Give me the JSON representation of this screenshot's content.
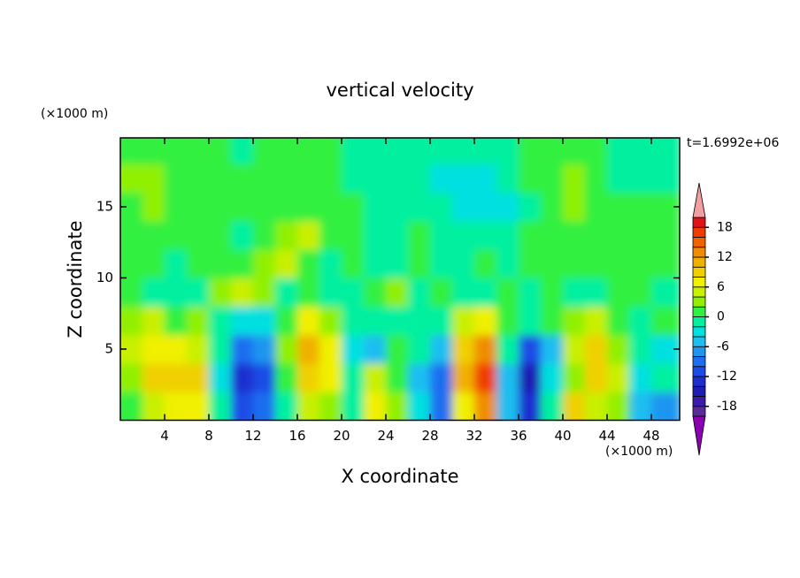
{
  "chart_data": {
    "type": "contour",
    "title": "vertical velocity",
    "subtitle": "t=1.6992e+06",
    "x_label": "X coordinate",
    "y_label": "Z coordinate",
    "x_unit": "(×1000 m)",
    "y_unit": "(×1000 m)",
    "xlim": [
      0,
      50.56
    ],
    "ylim": [
      0,
      19.84
    ],
    "xticks": [
      4,
      8,
      12,
      16,
      20,
      24,
      28,
      32,
      36,
      40,
      44,
      48
    ],
    "yticks": [
      5,
      10,
      15
    ],
    "x": [
      1,
      3,
      5,
      7,
      9,
      11,
      13,
      15,
      17,
      19,
      21,
      23,
      25,
      27,
      29,
      31,
      33,
      35,
      37,
      39,
      41,
      43,
      45,
      47,
      49
    ],
    "z": [
      1,
      3,
      5,
      7,
      9,
      11,
      13,
      15,
      17,
      19
    ],
    "values": [
      [
        0,
        4,
        6,
        6,
        -2,
        -12,
        -10,
        -2,
        4,
        2,
        -2,
        6,
        2,
        -4,
        -10,
        6,
        12,
        -6,
        -14,
        -2,
        8,
        4,
        2,
        -6,
        -8
      ],
      [
        2,
        8,
        8,
        8,
        -4,
        -14,
        -12,
        0,
        8,
        6,
        -2,
        4,
        0,
        -6,
        -10,
        10,
        16,
        -6,
        -16,
        -4,
        2,
        8,
        4,
        -4,
        -2
      ],
      [
        4,
        6,
        6,
        4,
        -2,
        -10,
        -8,
        2,
        10,
        6,
        -4,
        -6,
        0,
        -2,
        -6,
        8,
        12,
        -2,
        -12,
        -6,
        4,
        8,
        2,
        -2,
        -4
      ],
      [
        2,
        4,
        0,
        2,
        -2,
        -4,
        -4,
        0,
        6,
        2,
        -2,
        -2,
        -2,
        -2,
        -2,
        4,
        6,
        0,
        -2,
        0,
        2,
        4,
        0,
        -2,
        0
      ],
      [
        0,
        -2,
        -2,
        -2,
        2,
        4,
        2,
        -2,
        0,
        -2,
        -2,
        0,
        2,
        -2,
        0,
        -2,
        -2,
        0,
        -2,
        0,
        -2,
        -2,
        0,
        0,
        -2
      ],
      [
        0,
        0,
        -2,
        0,
        0,
        0,
        2,
        4,
        0,
        -2,
        0,
        -2,
        -2,
        0,
        -2,
        -2,
        0,
        -2,
        0,
        0,
        0,
        0,
        0,
        0,
        0
      ],
      [
        0,
        0,
        0,
        0,
        0,
        -2,
        0,
        2,
        4,
        0,
        0,
        -2,
        -2,
        0,
        -2,
        -2,
        -2,
        -2,
        0,
        0,
        0,
        0,
        0,
        0,
        0
      ],
      [
        0,
        2,
        0,
        0,
        0,
        0,
        0,
        0,
        0,
        0,
        0,
        -2,
        -2,
        -2,
        -2,
        -4,
        -4,
        -4,
        -2,
        0,
        2,
        0,
        0,
        0,
        0
      ],
      [
        2,
        2,
        0,
        0,
        0,
        0,
        0,
        0,
        0,
        0,
        -2,
        -2,
        -2,
        -2,
        -4,
        -4,
        -4,
        -2,
        0,
        0,
        2,
        0,
        -2,
        -2,
        -2
      ],
      [
        0,
        0,
        0,
        0,
        0,
        -2,
        0,
        0,
        0,
        0,
        -2,
        -2,
        -2,
        -2,
        -2,
        -2,
        -2,
        -2,
        0,
        0,
        0,
        0,
        -2,
        -2,
        -2
      ]
    ],
    "colorbar": {
      "levels": [
        -20,
        -18,
        -16,
        -14,
        -12,
        -10,
        -8,
        -6,
        -4,
        -2,
        0,
        2,
        4,
        6,
        8,
        10,
        12,
        14,
        16,
        18,
        20
      ],
      "colors": [
        "#8c00b4",
        "#5a2a9c",
        "#3a1ca8",
        "#1e1eb4",
        "#1e2fd0",
        "#1e4be6",
        "#1e6ef0",
        "#1e96f0",
        "#1ebef0",
        "#00e0e0",
        "#00f0a0",
        "#30f040",
        "#90f000",
        "#c8f000",
        "#f0f000",
        "#f0d000",
        "#f0b000",
        "#f08c00",
        "#f06400",
        "#f03c00",
        "#e01414",
        "#f0a0a0"
      ],
      "ticks": [
        -18,
        -12,
        -6,
        0,
        6,
        12,
        18
      ]
    }
  }
}
